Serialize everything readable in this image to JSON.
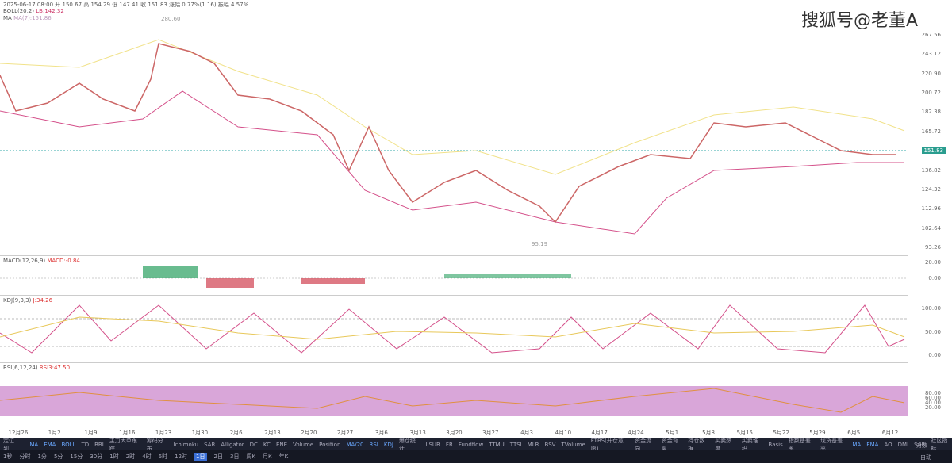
{
  "header": {
    "ohlc": "2025-06-17 08:00 开 150.67 高 154.29 低 147.41 收 151.83 涨幅 0.77%(1.16) 振幅 4.57%",
    "boll": "BOLL(20,2)",
    "boll_lb": "LB:142.32",
    "ma": "MA",
    "ma_value": "MA(7):151.86"
  },
  "watermark": "搜狐号@老董A",
  "price_axis": [
    "267.56",
    "243.12",
    "220.90",
    "200.72",
    "182.38",
    "165.72",
    "151.83",
    "136.82",
    "124.32",
    "112.96",
    "102.64",
    "93.26"
  ],
  "annotations": {
    "high": "280.60",
    "low": "95.19"
  },
  "macd": {
    "title": "MACD(12,26,9)",
    "value": "MACD:-0.84",
    "axis": [
      "20.00",
      "0.00"
    ]
  },
  "kdj": {
    "title": "KDJ(9,3,3)",
    "value": "J:34.26",
    "axis": [
      "100.00",
      "50.00",
      "0.00"
    ]
  },
  "rsi": {
    "title": "RSI(6,12,24)",
    "value": "RSI3:47.50",
    "axis": [
      "80.00",
      "60.00",
      "40.00",
      "20.00"
    ]
  },
  "dates": [
    "12月26",
    "1月2",
    "1月9",
    "1月16",
    "1月23",
    "1月30",
    "2月6",
    "2月13",
    "2月20",
    "2月27",
    "3月6",
    "3月13",
    "3月20",
    "3月27",
    "4月3",
    "4月10",
    "4月17",
    "4月24",
    "5月1",
    "5月8",
    "5月15",
    "5月22",
    "5月29",
    "6月5",
    "6月12"
  ],
  "indicators": [
    "定位到...",
    "MA",
    "EMA",
    "BOLL",
    "TD",
    "BBI",
    "主力大单跟踪",
    "筹码分布",
    "Ichimoku",
    "SAR",
    "Alligator",
    "DC",
    "KC",
    "ENE",
    "Volume",
    "Position",
    "MA/20",
    "RSI",
    "KDJ",
    "爆仓统计",
    "LSUR",
    "FR",
    "Fundflow",
    "TTMU",
    "TTSI",
    "MLR",
    "BSV",
    "TVolume",
    "FTBS(开仓意愿)",
    "资金流向",
    "资金背离",
    "持仓数据",
    "买卖热度",
    "买卖堆积",
    "Basis",
    "指数基差率",
    "现货基差率",
    "MA",
    "EMA",
    "AO",
    "DMI",
    "SAR",
    "社区指标"
  ],
  "corner": [
    "对数",
    "自动"
  ],
  "timeframes": [
    "1秒",
    "分时",
    "1分",
    "5分",
    "15分",
    "30分",
    "1时",
    "2时",
    "4时",
    "6时",
    "12时",
    "1日",
    "2日",
    "3日",
    "周K",
    "月K",
    "年K"
  ]
}
